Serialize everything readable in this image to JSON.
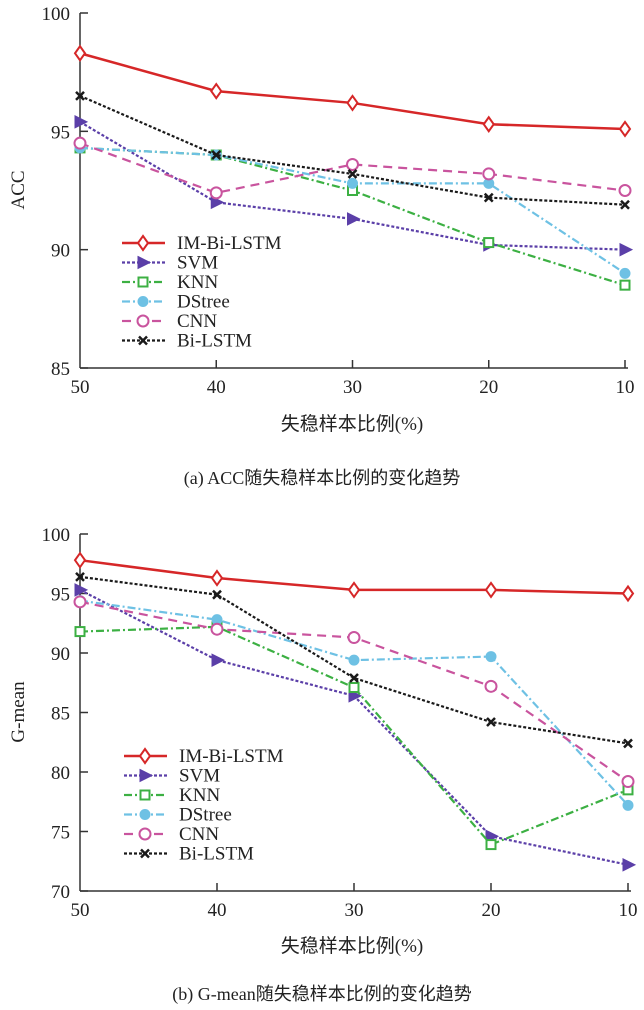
{
  "chart_data": [
    {
      "type": "line",
      "caption": "(a) ACC随失稳样本比例的变化趋势",
      "xlabel": "失稳样本比例(%)",
      "ylabel": "ACC",
      "x": [
        50,
        40,
        30,
        20,
        10
      ],
      "x_tick_labels": [
        "50",
        "40",
        "30",
        "20",
        "10"
      ],
      "y_tick_labels": [
        "85",
        "90",
        "95",
        "100"
      ],
      "y_ticks": [
        85,
        90,
        95,
        100
      ],
      "ylim": [
        85,
        100
      ],
      "grid": false,
      "legend_position": "lower-left",
      "series": [
        {
          "name": "IM-Bi-LSTM",
          "color": "#d62728",
          "marker": "diamond",
          "dash": "solid",
          "values": [
            98.3,
            96.7,
            96.2,
            95.3,
            95.1
          ]
        },
        {
          "name": "SVM",
          "color": "#5b3fa8",
          "marker": "triangle-right",
          "dash": "dotted",
          "values": [
            95.4,
            92.0,
            91.3,
            90.2,
            90.0
          ]
        },
        {
          "name": "KNN",
          "color": "#3cb043",
          "marker": "square",
          "dash": "dashdot",
          "values": [
            94.3,
            94.0,
            92.5,
            90.3,
            88.5
          ]
        },
        {
          "name": "DStree",
          "color": "#6ec1e4",
          "marker": "circle-filled",
          "dash": "dashdot",
          "values": [
            94.3,
            94.0,
            92.8,
            92.8,
            89.0
          ]
        },
        {
          "name": "CNN",
          "color": "#c9549e",
          "marker": "circle-open",
          "dash": "dashed",
          "values": [
            94.5,
            92.4,
            93.6,
            93.2,
            92.5
          ]
        },
        {
          "name": "Bi-LSTM",
          "color": "#1a1a1a",
          "marker": "x",
          "dash": "dotted",
          "values": [
            96.5,
            94.0,
            93.2,
            92.2,
            91.9
          ]
        }
      ]
    },
    {
      "type": "line",
      "caption": "(b) G-mean随失稳样本比例的变化趋势",
      "xlabel": "失稳样本比例(%)",
      "ylabel": "G-mean",
      "x": [
        50,
        40,
        30,
        20,
        10
      ],
      "x_tick_labels": [
        "50",
        "40",
        "30",
        "20",
        "10"
      ],
      "y_tick_labels": [
        "70",
        "75",
        "80",
        "85",
        "90",
        "95",
        "100"
      ],
      "y_ticks": [
        70,
        75,
        80,
        85,
        90,
        95,
        100
      ],
      "ylim": [
        70,
        100
      ],
      "grid": false,
      "legend_position": "lower-left",
      "series": [
        {
          "name": "IM-Bi-LSTM",
          "color": "#d62728",
          "marker": "diamond",
          "dash": "solid",
          "values": [
            97.8,
            96.3,
            95.3,
            95.3,
            95.0
          ]
        },
        {
          "name": "SVM",
          "color": "#5b3fa8",
          "marker": "triangle-right",
          "dash": "dotted",
          "values": [
            95.3,
            89.4,
            86.4,
            74.6,
            72.2
          ]
        },
        {
          "name": "KNN",
          "color": "#3cb043",
          "marker": "square",
          "dash": "dashdot",
          "values": [
            91.8,
            92.2,
            87.1,
            73.9,
            78.5
          ]
        },
        {
          "name": "DStree",
          "color": "#6ec1e4",
          "marker": "circle-filled",
          "dash": "dashdot",
          "values": [
            94.4,
            92.8,
            89.4,
            89.7,
            77.2
          ]
        },
        {
          "name": "CNN",
          "color": "#c9549e",
          "marker": "circle-open",
          "dash": "dashed",
          "values": [
            94.3,
            92.0,
            91.3,
            87.2,
            79.2
          ]
        },
        {
          "name": "Bi-LSTM",
          "color": "#1a1a1a",
          "marker": "x",
          "dash": "dotted",
          "values": [
            96.4,
            94.9,
            87.9,
            84.2,
            82.4
          ]
        }
      ]
    }
  ]
}
